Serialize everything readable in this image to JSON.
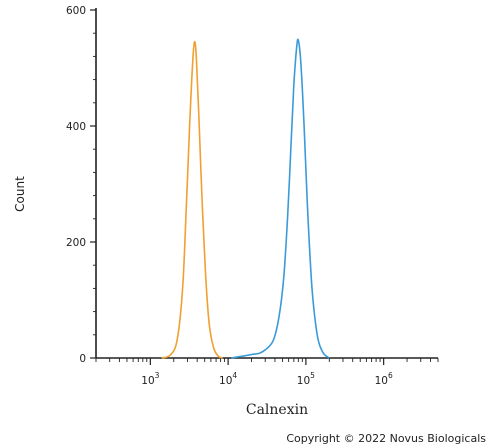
{
  "chart_data": {
    "type": "area",
    "xlabel": "Calnexin",
    "ylabel": "Count",
    "ylim": [
      0,
      600
    ],
    "yticks": [
      0,
      200,
      400,
      600
    ],
    "x_scale": "log",
    "xlim": [
      200,
      5000000
    ],
    "xtick_labels": [
      {
        "base": "10",
        "exp": "3",
        "value": 1000
      },
      {
        "base": "10",
        "exp": "4",
        "value": 10000
      },
      {
        "base": "10",
        "exp": "5",
        "value": 100000
      },
      {
        "base": "10",
        "exp": "6",
        "value": 1000000
      }
    ],
    "grid": false,
    "series": [
      {
        "color": "#f0a030",
        "points": [
          [
            1400,
            0
          ],
          [
            1800,
            5
          ],
          [
            2200,
            30
          ],
          [
            2600,
            120
          ],
          [
            2900,
            260
          ],
          [
            3200,
            400
          ],
          [
            3500,
            510
          ],
          [
            3700,
            545
          ],
          [
            3900,
            520
          ],
          [
            4200,
            420
          ],
          [
            4600,
            280
          ],
          [
            5100,
            150
          ],
          [
            5700,
            60
          ],
          [
            6500,
            18
          ],
          [
            7500,
            3
          ],
          [
            8500,
            0
          ]
        ]
      },
      {
        "color": "#3a9ad9",
        "points": [
          [
            11000,
            0
          ],
          [
            15000,
            3
          ],
          [
            20000,
            6
          ],
          [
            25000,
            8
          ],
          [
            30000,
            14
          ],
          [
            38000,
            30
          ],
          [
            45000,
            70
          ],
          [
            52000,
            140
          ],
          [
            58000,
            240
          ],
          [
            64000,
            360
          ],
          [
            70000,
            470
          ],
          [
            76000,
            535
          ],
          [
            80000,
            548
          ],
          [
            86000,
            510
          ],
          [
            95000,
            400
          ],
          [
            105000,
            260
          ],
          [
            120000,
            120
          ],
          [
            140000,
            40
          ],
          [
            165000,
            10
          ],
          [
            200000,
            0
          ]
        ]
      }
    ]
  },
  "footer": {
    "copyright": "Copyright © 2022 Novus Biologicals"
  }
}
